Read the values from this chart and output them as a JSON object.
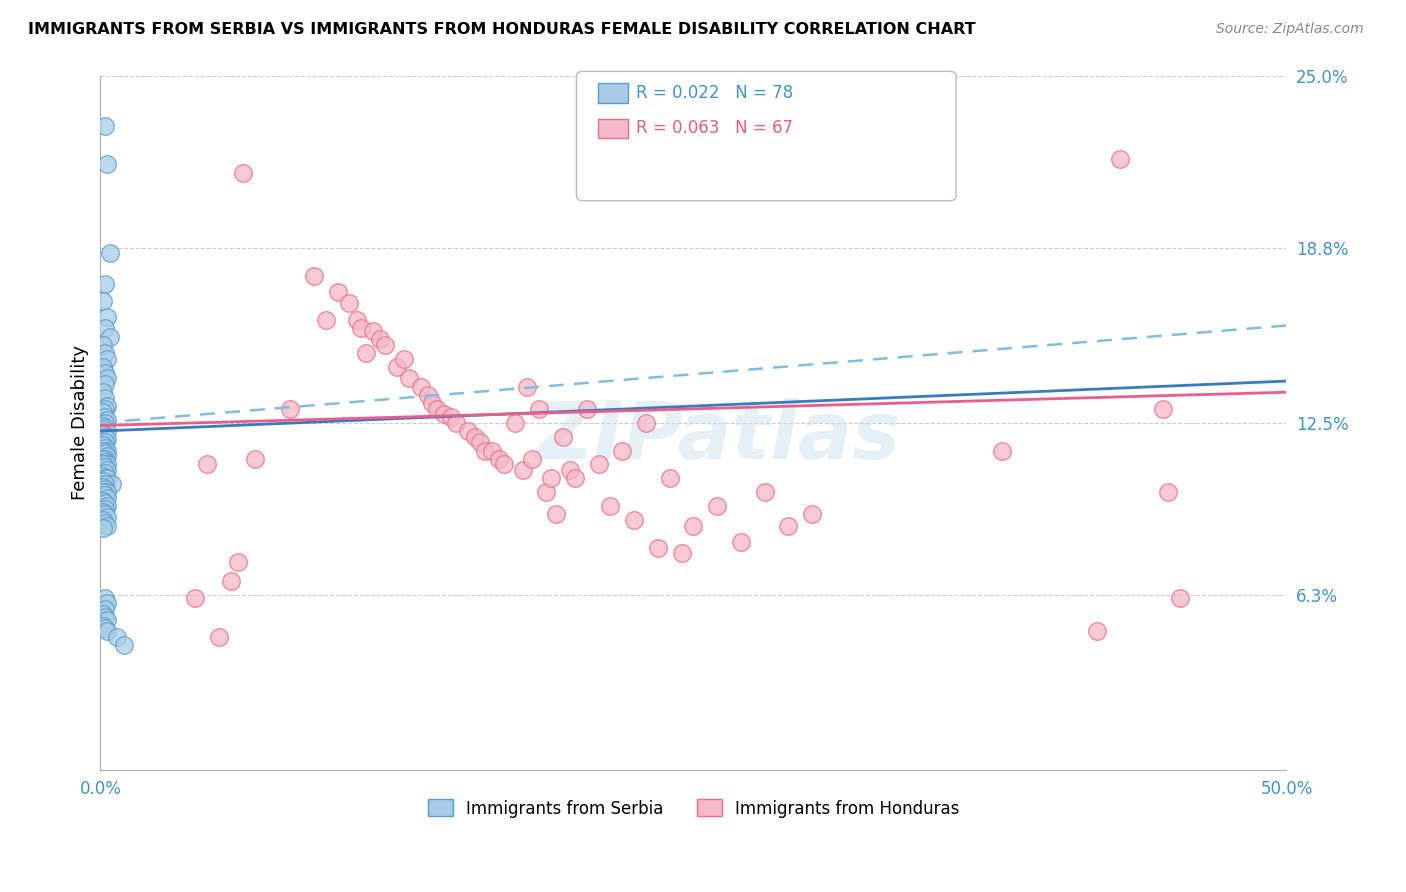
{
  "title": "IMMIGRANTS FROM SERBIA VS IMMIGRANTS FROM HONDURAS FEMALE DISABILITY CORRELATION CHART",
  "source": "Source: ZipAtlas.com",
  "ylabel": "Female Disability",
  "xlim": [
    0.0,
    0.5
  ],
  "ylim": [
    0.0,
    0.25
  ],
  "ytick_labels": [
    "6.3%",
    "12.5%",
    "18.8%",
    "25.0%"
  ],
  "ytick_positions": [
    0.063,
    0.125,
    0.188,
    0.25
  ],
  "serbia_color": "#a8cce8",
  "serbia_edge_color": "#5b9dc9",
  "honduras_color": "#f4b8c8",
  "honduras_edge_color": "#e8708a",
  "serbia_R": 0.022,
  "serbia_N": 78,
  "honduras_R": 0.063,
  "honduras_N": 67,
  "serbia_solid_line_color": "#3a7abf",
  "serbia_dash_line_color": "#82bcdf",
  "honduras_line_color": "#e8608a",
  "watermark": "ZIPatlas",
  "serbia_x": [
    0.002,
    0.003,
    0.004,
    0.002,
    0.001,
    0.003,
    0.002,
    0.004,
    0.001,
    0.002,
    0.003,
    0.001,
    0.002,
    0.003,
    0.002,
    0.001,
    0.002,
    0.003,
    0.002,
    0.001,
    0.002,
    0.003,
    0.002,
    0.001,
    0.002,
    0.003,
    0.001,
    0.002,
    0.003,
    0.002,
    0.001,
    0.002,
    0.003,
    0.001,
    0.002,
    0.003,
    0.002,
    0.001,
    0.002,
    0.003,
    0.001,
    0.002,
    0.003,
    0.002,
    0.001,
    0.002,
    0.003,
    0.001,
    0.005,
    0.002,
    0.001,
    0.002,
    0.003,
    0.001,
    0.002,
    0.003,
    0.001,
    0.002,
    0.003,
    0.002,
    0.001,
    0.002,
    0.003,
    0.001,
    0.002,
    0.003,
    0.001,
    0.002,
    0.003,
    0.002,
    0.001,
    0.002,
    0.003,
    0.001,
    0.002,
    0.003,
    0.007,
    0.01
  ],
  "serbia_y": [
    0.232,
    0.218,
    0.186,
    0.175,
    0.169,
    0.163,
    0.159,
    0.156,
    0.153,
    0.15,
    0.148,
    0.145,
    0.143,
    0.141,
    0.139,
    0.136,
    0.134,
    0.131,
    0.13,
    0.129,
    0.127,
    0.126,
    0.125,
    0.124,
    0.123,
    0.122,
    0.121,
    0.12,
    0.119,
    0.118,
    0.117,
    0.116,
    0.115,
    0.115,
    0.114,
    0.113,
    0.112,
    0.112,
    0.111,
    0.11,
    0.11,
    0.109,
    0.108,
    0.107,
    0.106,
    0.105,
    0.105,
    0.104,
    0.103,
    0.103,
    0.102,
    0.101,
    0.1,
    0.1,
    0.099,
    0.098,
    0.097,
    0.096,
    0.095,
    0.094,
    0.093,
    0.092,
    0.091,
    0.09,
    0.089,
    0.088,
    0.087,
    0.062,
    0.06,
    0.058,
    0.056,
    0.055,
    0.054,
    0.052,
    0.051,
    0.05,
    0.048,
    0.045
  ],
  "honduras_x": [
    0.06,
    0.065,
    0.08,
    0.09,
    0.095,
    0.1,
    0.105,
    0.108,
    0.11,
    0.112,
    0.115,
    0.118,
    0.12,
    0.125,
    0.128,
    0.13,
    0.135,
    0.138,
    0.14,
    0.142,
    0.145,
    0.148,
    0.15,
    0.155,
    0.158,
    0.16,
    0.162,
    0.165,
    0.168,
    0.17,
    0.175,
    0.178,
    0.18,
    0.182,
    0.185,
    0.188,
    0.19,
    0.192,
    0.195,
    0.198,
    0.2,
    0.205,
    0.21,
    0.215,
    0.22,
    0.225,
    0.23,
    0.235,
    0.24,
    0.245,
    0.25,
    0.26,
    0.27,
    0.28,
    0.29,
    0.3,
    0.38,
    0.42,
    0.43,
    0.448,
    0.45,
    0.455,
    0.04,
    0.045,
    0.05,
    0.055,
    0.058
  ],
  "honduras_y": [
    0.215,
    0.112,
    0.13,
    0.178,
    0.162,
    0.172,
    0.168,
    0.162,
    0.159,
    0.15,
    0.158,
    0.155,
    0.153,
    0.145,
    0.148,
    0.141,
    0.138,
    0.135,
    0.132,
    0.13,
    0.128,
    0.127,
    0.125,
    0.122,
    0.12,
    0.118,
    0.115,
    0.115,
    0.112,
    0.11,
    0.125,
    0.108,
    0.138,
    0.112,
    0.13,
    0.1,
    0.105,
    0.092,
    0.12,
    0.108,
    0.105,
    0.13,
    0.11,
    0.095,
    0.115,
    0.09,
    0.125,
    0.08,
    0.105,
    0.078,
    0.088,
    0.095,
    0.082,
    0.1,
    0.088,
    0.092,
    0.115,
    0.05,
    0.22,
    0.13,
    0.1,
    0.062,
    0.062,
    0.11,
    0.048,
    0.068,
    0.075
  ]
}
